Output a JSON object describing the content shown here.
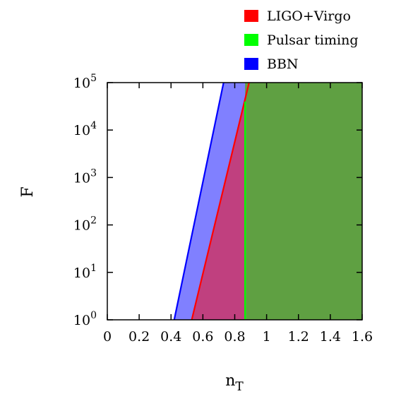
{
  "chart_data": {
    "type": "area",
    "title": "",
    "xlabel": "n",
    "xlabel_sub": "T",
    "ylabel": "F",
    "xlim": [
      0,
      1.6
    ],
    "ylim_log10": [
      0,
      5
    ],
    "y_scale": "log",
    "x_ticks": [
      0,
      0.2,
      0.4,
      0.6,
      0.8,
      1,
      1.2,
      1.4,
      1.6
    ],
    "x_tick_labels": [
      "0",
      "0.2",
      "0.4",
      "0.6",
      "0.8",
      "1",
      "1.2",
      "1.4",
      "1.6"
    ],
    "y_ticks_log10": [
      0,
      1,
      2,
      3,
      4,
      5
    ],
    "y_tick_base": "10",
    "y_tick_exponents": [
      "0",
      "1",
      "2",
      "3",
      "4",
      "5"
    ],
    "grid": false,
    "legend": {
      "position": "top-right",
      "location": "outside-above"
    },
    "series": [
      {
        "name": "BBN",
        "color": "#0000ff",
        "fill": "#8080ff",
        "boundary_nT": [
          0.42,
          0.73
        ],
        "boundary_log10F": [
          0,
          5
        ]
      },
      {
        "name": "LIGO+Virgo",
        "color": "#ff0000",
        "fill": "#c0407f",
        "boundary_nT": [
          0.53,
          0.89
        ],
        "boundary_log10F": [
          0,
          5
        ]
      },
      {
        "name": "Pulsar timing",
        "color": "#00ff00",
        "fill": "#5fa042",
        "boundary_nT": [
          0.865,
          0.865
        ],
        "boundary_log10F": [
          0,
          4.6
        ]
      }
    ]
  }
}
